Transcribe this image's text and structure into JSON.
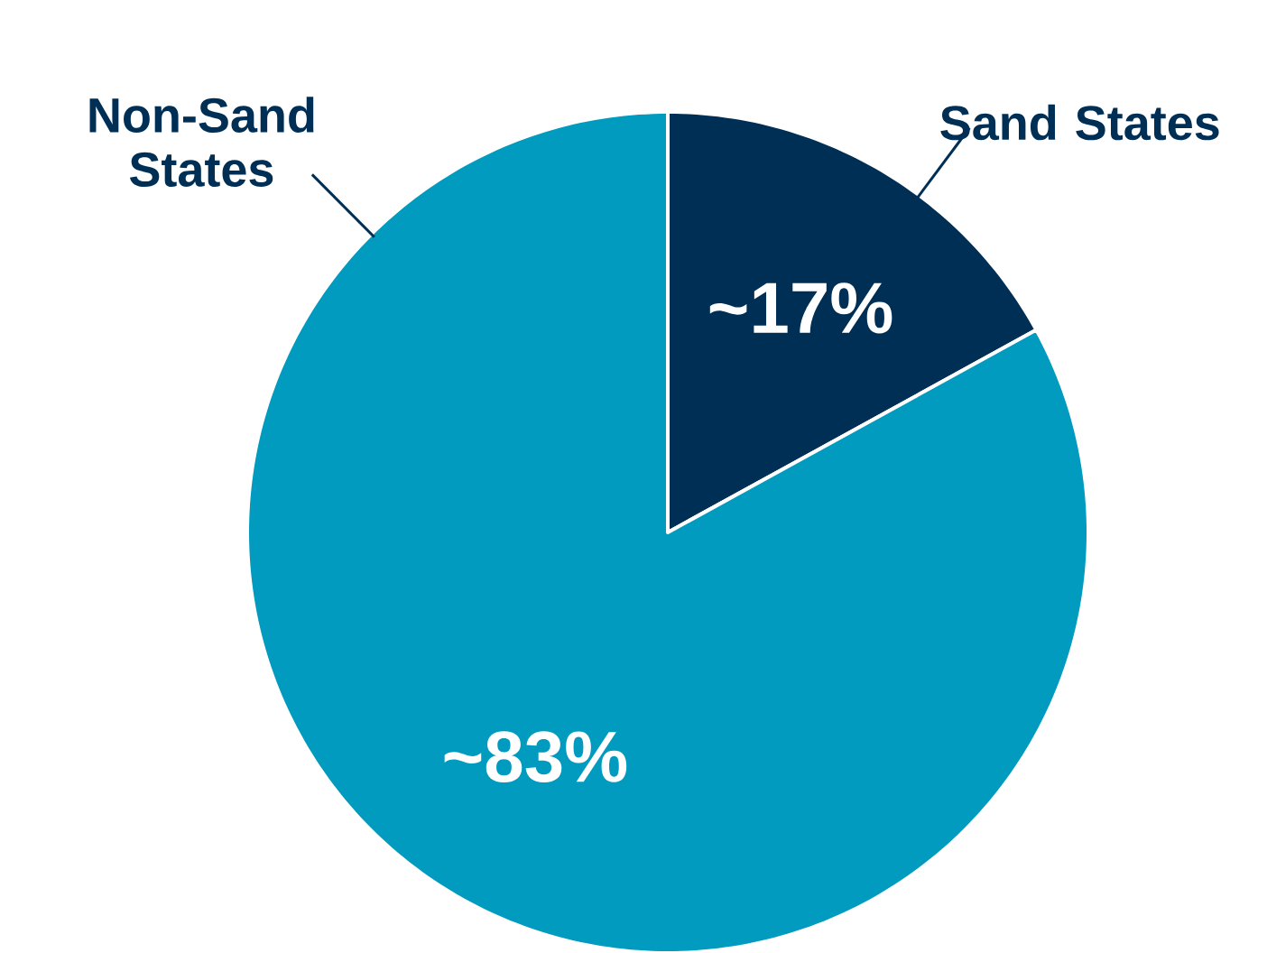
{
  "chart_data": {
    "type": "pie",
    "categories": [
      "Sand States",
      "Non-Sand States"
    ],
    "values": [
      17,
      83
    ],
    "colors": [
      "#002f56",
      "#009bbf"
    ],
    "value_labels": [
      "~17%",
      "~83%"
    ]
  }
}
